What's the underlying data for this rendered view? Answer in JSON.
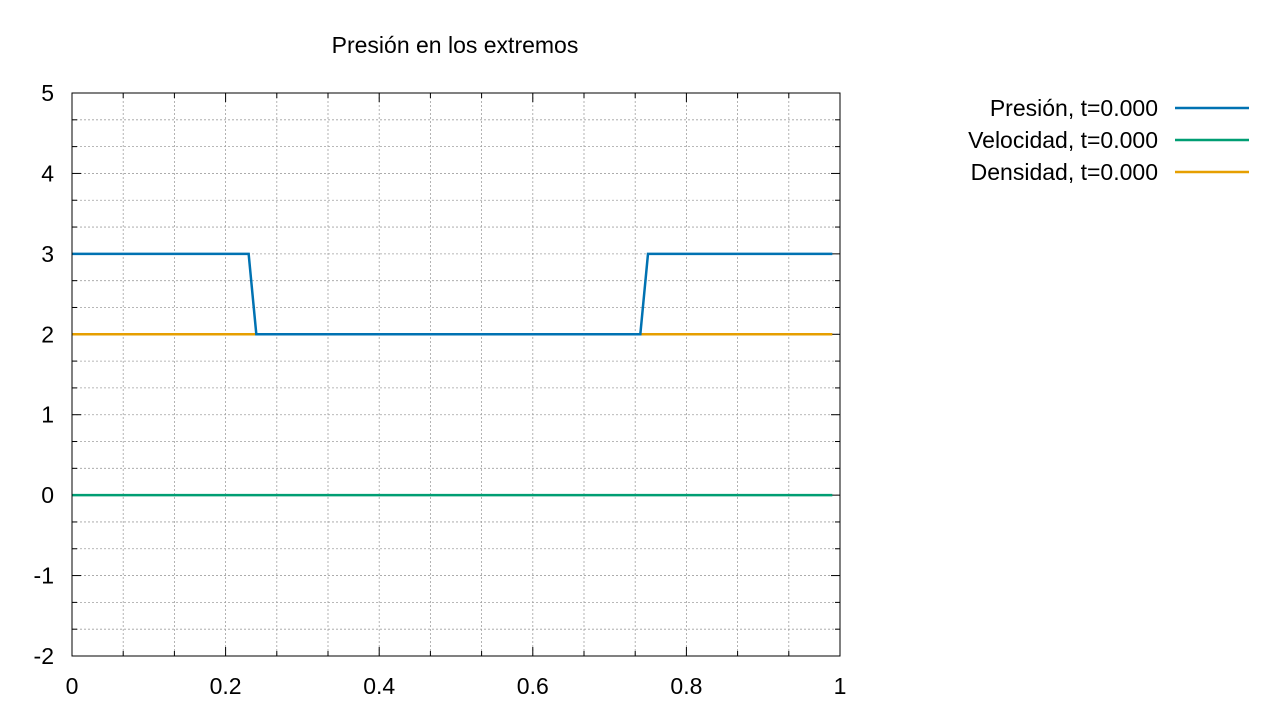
{
  "chart_data": {
    "type": "line",
    "title": "Presión en los extremos",
    "xlabel": "",
    "ylabel": "",
    "xlim": [
      0,
      1
    ],
    "ylim": [
      -2,
      5
    ],
    "x_ticks": [
      "0",
      "0.2",
      "0.4",
      "0.6",
      "0.8",
      "1"
    ],
    "y_ticks": [
      "-2",
      "-1",
      "0",
      "1",
      "2",
      "3",
      "4",
      "5"
    ],
    "grid": true,
    "legend_position": "top-right, outside",
    "series": [
      {
        "name": "Presión, t=0.000",
        "color": "#0072b2",
        "x": [
          0,
          0.23,
          0.24,
          0.74,
          0.75,
          0.99
        ],
        "y": [
          3,
          3,
          2,
          2,
          3,
          3
        ]
      },
      {
        "name": "Velocidad, t=0.000",
        "color": "#009e73",
        "x": [
          0,
          0.99
        ],
        "y": [
          0,
          0
        ]
      },
      {
        "name": "Densidad, t=0.000",
        "color": "#e69f00",
        "x": [
          0,
          0.99
        ],
        "y": [
          2,
          2
        ]
      }
    ]
  }
}
